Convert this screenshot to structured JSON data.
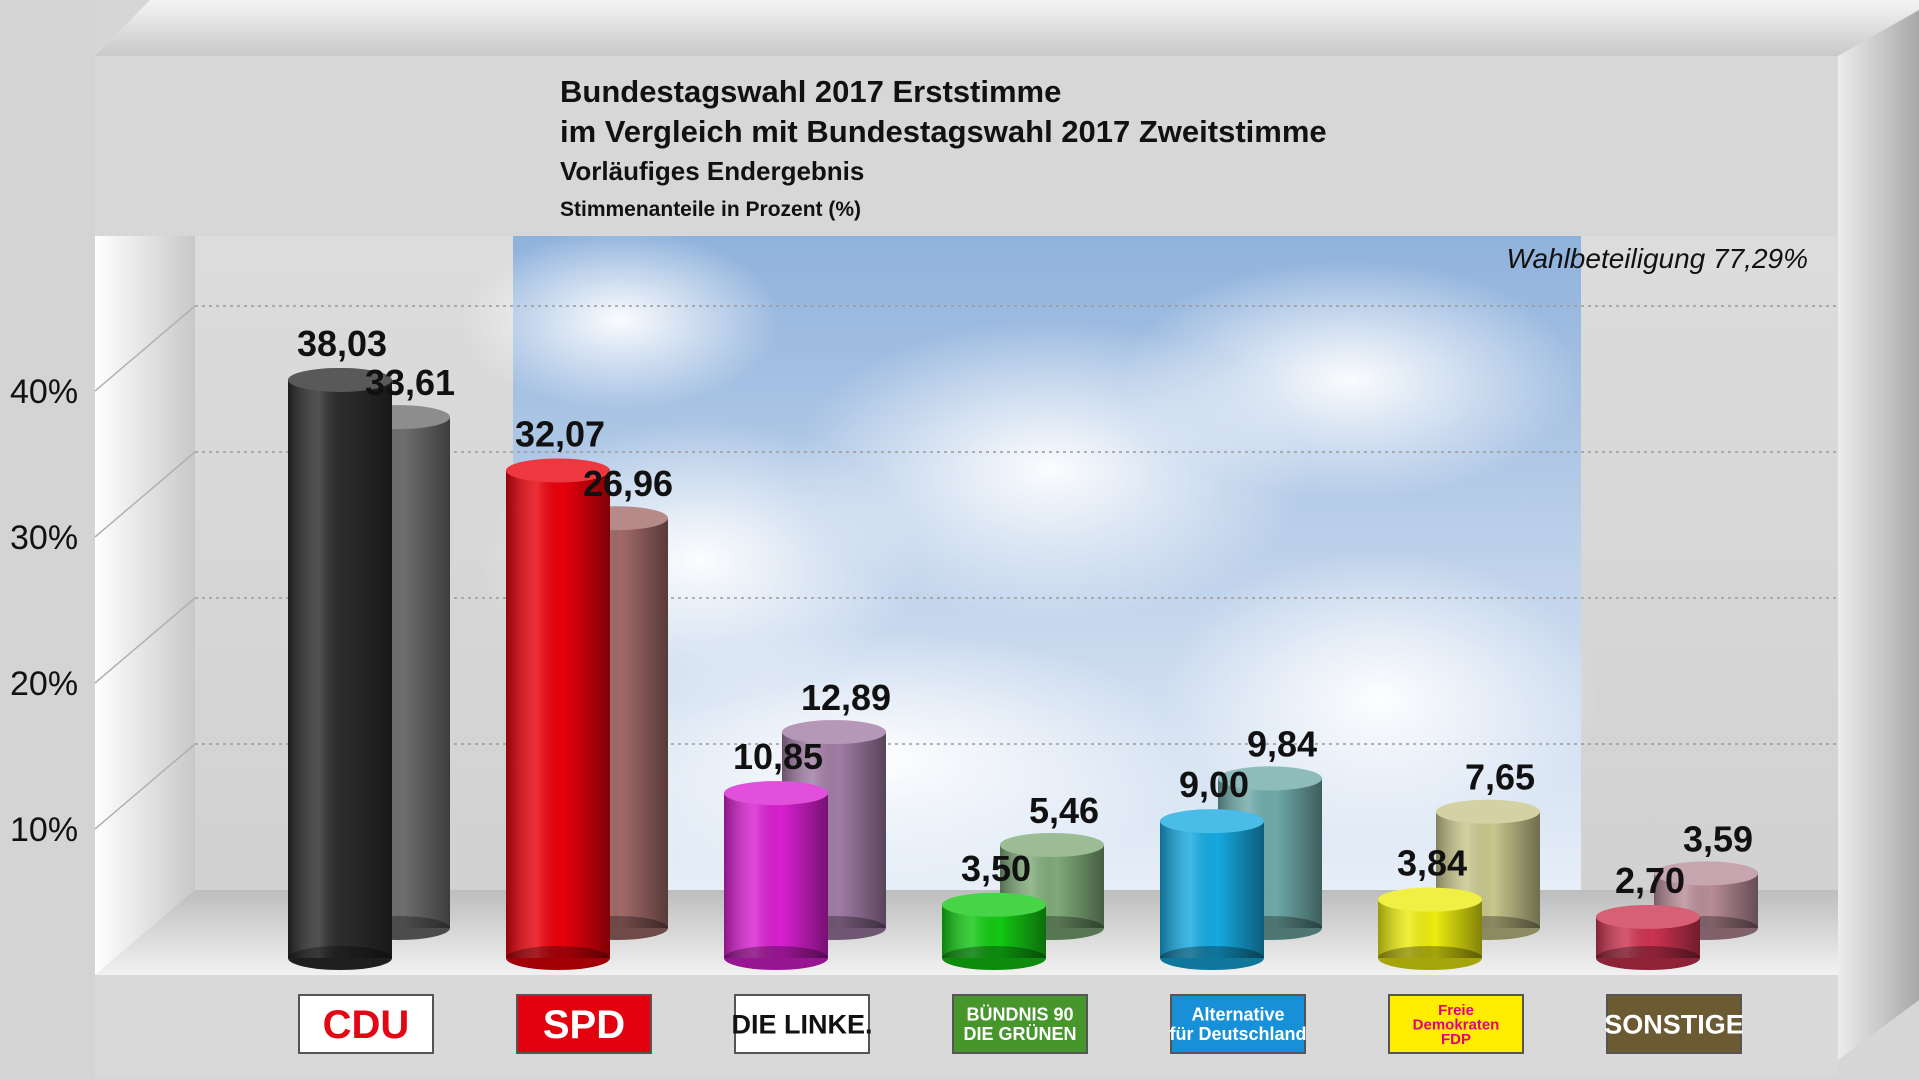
{
  "chart_data": {
    "type": "bar",
    "title": "Bundestagswahl 2017 Erststimme",
    "title_line2": "im Vergleich mit Bundestagswahl 2017 Zweitstimme",
    "subtitle": "Vorläufiges Endergebnis",
    "ylabel": "Stimmenanteile in Prozent (%)",
    "annotation": "Wahlbeteiligung 77,29%",
    "ylim": [
      0,
      50
    ],
    "grid": true,
    "y_ticks": [
      {
        "value": 10,
        "label": "10%"
      },
      {
        "value": 20,
        "label": "20%"
      },
      {
        "value": 30,
        "label": "30%"
      },
      {
        "value": 40,
        "label": "40%"
      }
    ],
    "categories": [
      "CDU",
      "SPD",
      "DIE LINKE.",
      "BÜNDNIS 90 DIE GRÜNEN",
      "Alternative für Deutschland",
      "Freie Demokraten FDP",
      "SONSTIGE"
    ],
    "series": [
      {
        "values": [
          38.03,
          32.07,
          10.85,
          3.5,
          9.0,
          3.84,
          2.7
        ],
        "labels": [
          "38,03",
          "32,07",
          "10,85",
          "3,50",
          "9,00",
          "3,84",
          "2,70"
        ],
        "colors": [
          "#2b2b2b",
          "#e8000b",
          "#d81fd0",
          "#14c814",
          "#16a9e0",
          "#ecec10",
          "#cc3350"
        ]
      },
      {
        "values": [
          33.61,
          26.96,
          12.89,
          5.46,
          9.84,
          7.65,
          3.59
        ],
        "labels": [
          "33,61",
          "26,96",
          "12,89",
          "5,46",
          "9,84",
          "7,65",
          "3,59"
        ],
        "colors": [
          "#6e6e6e",
          "#a06a68",
          "#a07ca4",
          "#7faa78",
          "#6faaa8",
          "#c8c68c",
          "#b88c98"
        ]
      }
    ],
    "logos": [
      {
        "text": "CDU",
        "bg": "#ffffff",
        "fg": "#e30613"
      },
      {
        "text": "SPD",
        "bg": "#e3000f",
        "fg": "#ffffff"
      },
      {
        "text": "DIE LINKE.",
        "bg": "#ffffff",
        "fg": "#111111"
      },
      {
        "text": "BÜNDNIS 90",
        "text2": "DIE GRÜNEN",
        "bg": "#46962b",
        "fg": "#ffffff"
      },
      {
        "text": "Alternative",
        "text2": "für Deutschland",
        "bg": "#1890d8",
        "fg": "#ffffff"
      },
      {
        "text": "Freie",
        "text2": "Demokraten",
        "text3": "FDP",
        "bg": "#ffed00",
        "fg": "#e5007d"
      },
      {
        "text": "SONSTIGE",
        "bg": "#6b5a32",
        "fg": "#ffffff"
      }
    ]
  }
}
